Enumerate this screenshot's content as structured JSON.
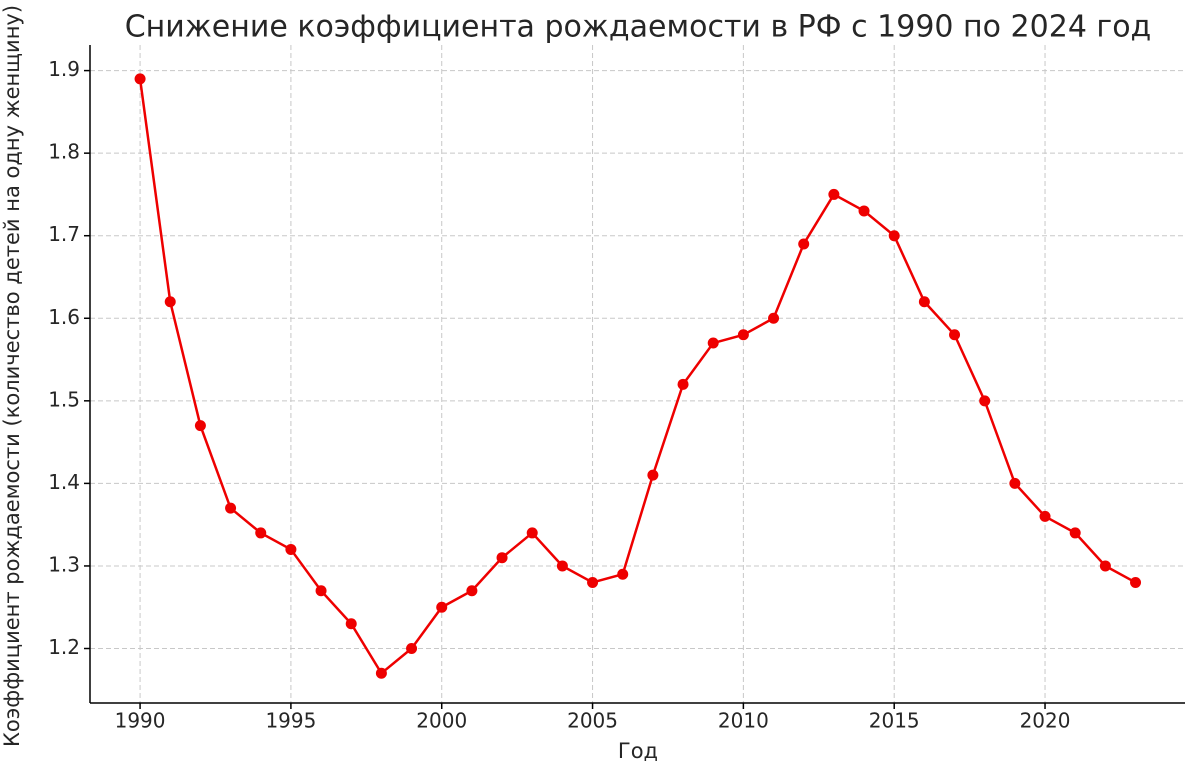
{
  "chart_data": {
    "type": "line",
    "title": "Снижение коэффициента рождаемости в РФ с 1990 по 2024 год",
    "x_label": "Год",
    "y_label": "Коэффициент рождаемости (количество детей на одну женщину)",
    "x": [
      1990,
      1991,
      1992,
      1993,
      1994,
      1995,
      1996,
      1997,
      1998,
      1999,
      2000,
      2001,
      2002,
      2003,
      2004,
      2005,
      2006,
      2007,
      2008,
      2009,
      2010,
      2011,
      2012,
      2013,
      2014,
      2015,
      2016,
      2017,
      2018,
      2019,
      2020,
      2021,
      2022,
      2023
    ],
    "series": [
      {
        "name": "Коэффициент рождаемости",
        "color": "#ee0000",
        "values": [
          1.89,
          1.62,
          1.47,
          1.37,
          1.34,
          1.32,
          1.27,
          1.23,
          1.17,
          1.2,
          1.25,
          1.27,
          1.31,
          1.34,
          1.3,
          1.28,
          1.29,
          1.41,
          1.52,
          1.57,
          1.58,
          1.6,
          1.69,
          1.75,
          1.73,
          1.7,
          1.62,
          1.58,
          1.5,
          1.4,
          1.36,
          1.34,
          1.3,
          1.28
        ]
      }
    ],
    "xlim": [
      1988.34,
      2024.64
    ],
    "xticks": [
      1990,
      1995,
      2000,
      2005,
      2010,
      2015,
      2020
    ],
    "ylim": [
      1.134,
      1.931
    ],
    "yticks": [
      1.2,
      1.3,
      1.4,
      1.5,
      1.6,
      1.7,
      1.8,
      1.9
    ],
    "grid": true
  }
}
